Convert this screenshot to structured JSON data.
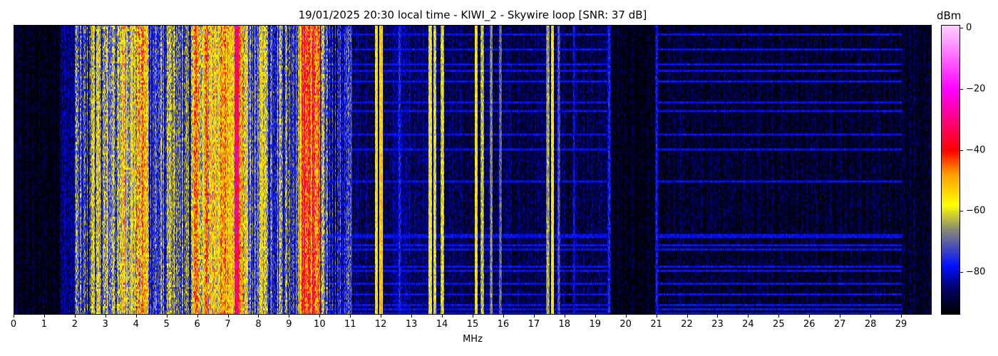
{
  "chart_data": {
    "type": "heatmap",
    "title": "19/01/2025 20:30 local time - KIWI_2 - Skywire loop [SNR: 37 dB]",
    "xlabel": "MHz",
    "xlim": [
      0,
      30
    ],
    "xticks": [
      "0",
      "1",
      "2",
      "3",
      "4",
      "5",
      "6",
      "7",
      "8",
      "9",
      "10",
      "11",
      "12",
      "13",
      "14",
      "15",
      "16",
      "17",
      "18",
      "19",
      "20",
      "21",
      "22",
      "23",
      "24",
      "25",
      "26",
      "27",
      "28",
      "29"
    ],
    "colorbar": {
      "label": "dBm",
      "range": [
        -94,
        1
      ],
      "ticks": [
        "0",
        "−20",
        "−40",
        "−60",
        "−80"
      ],
      "tick_values": [
        0,
        -20,
        -40,
        -60,
        -80
      ],
      "colormap": [
        [
          -94,
          "#000000"
        ],
        [
          -86,
          "#000060"
        ],
        [
          -78,
          "#0010ff"
        ],
        [
          -66,
          "#8a8a70"
        ],
        [
          -58,
          "#ffff00"
        ],
        [
          -48,
          "#ffa000"
        ],
        [
          -40,
          "#ff0000"
        ],
        [
          -30,
          "#ff0080"
        ],
        [
          -20,
          "#ff00ff"
        ],
        [
          1,
          "#ffd0ff"
        ]
      ]
    },
    "background_profile_mhz_dbm": [
      [
        0,
        1.5,
        -92
      ],
      [
        1.5,
        2.0,
        -85
      ],
      [
        2.0,
        2.5,
        -76
      ],
      [
        2.5,
        3.5,
        -68
      ],
      [
        3.5,
        4.3,
        -59
      ],
      [
        4.3,
        5.8,
        -73
      ],
      [
        5.8,
        7.5,
        -56
      ],
      [
        7.5,
        9.3,
        -71
      ],
      [
        9.3,
        10.0,
        -46
      ],
      [
        10.0,
        11.0,
        -79
      ],
      [
        11.0,
        14.0,
        -86
      ],
      [
        14.0,
        19.4,
        -88
      ],
      [
        19.4,
        21.0,
        -92
      ],
      [
        21.0,
        30.0,
        -90
      ]
    ],
    "signal_lines_mhz_dbm": [
      [
        2.05,
        -65
      ],
      [
        2.6,
        -58
      ],
      [
        3.25,
        -60
      ],
      [
        3.6,
        -48
      ],
      [
        4.2,
        -44
      ],
      [
        4.35,
        -50
      ],
      [
        5.1,
        -60
      ],
      [
        5.95,
        -42
      ],
      [
        6.3,
        -42
      ],
      [
        6.55,
        -50
      ],
      [
        6.9,
        -45
      ],
      [
        7.25,
        -28
      ],
      [
        7.3,
        -30
      ],
      [
        7.6,
        -55
      ],
      [
        8.1,
        -55
      ],
      [
        8.2,
        -58
      ],
      [
        8.7,
        -62
      ],
      [
        9.5,
        -40
      ],
      [
        9.65,
        -38
      ],
      [
        9.78,
        -40
      ],
      [
        10.1,
        -60
      ],
      [
        11.0,
        -70
      ],
      [
        11.85,
        -55
      ],
      [
        12.0,
        -50
      ],
      [
        12.6,
        -75
      ],
      [
        13.6,
        -55
      ],
      [
        13.75,
        -58
      ],
      [
        14.0,
        -58
      ],
      [
        15.1,
        -55
      ],
      [
        15.3,
        -60
      ],
      [
        15.6,
        -65
      ],
      [
        15.9,
        -68
      ],
      [
        17.45,
        -62
      ],
      [
        17.6,
        -55
      ],
      [
        17.8,
        -70
      ],
      [
        18.3,
        -78
      ],
      [
        19.45,
        -75
      ],
      [
        21.0,
        -76
      ]
    ]
  }
}
